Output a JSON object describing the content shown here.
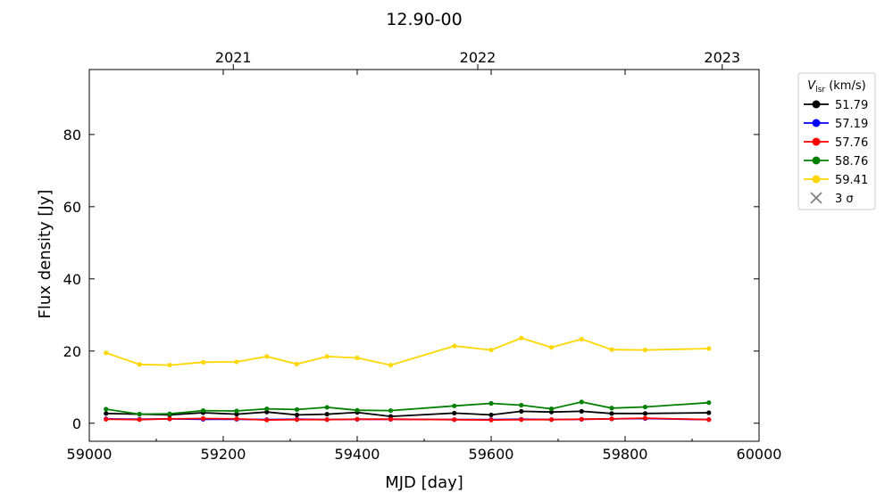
{
  "chart_data": {
    "type": "line",
    "title": "12.90-00",
    "xlabel": "MJD [day]",
    "ylabel": "Flux density [Jy]",
    "xlim": [
      59000,
      60000
    ],
    "ylim": [
      -5,
      98
    ],
    "x_ticks": [
      59000,
      59200,
      59400,
      59600,
      59800,
      60000
    ],
    "y_ticks": [
      0,
      20,
      40,
      60,
      80
    ],
    "x_tick_labels": [
      "59000",
      "59200",
      "59400",
      "59600",
      "59800",
      "60000"
    ],
    "y_tick_labels": [
      "0",
      "20",
      "40",
      "60",
      "80"
    ],
    "top_axis": {
      "ticks": [
        59215,
        59580,
        59945
      ],
      "labels": [
        "2021",
        "2022",
        "2023"
      ]
    },
    "grid": false,
    "legend": {
      "placement": "outside-right",
      "title_main": "V",
      "title_sub": "lsr",
      "title_unit": " (km/s)",
      "sigma_label": "3 σ",
      "sigma_color": "#808080"
    },
    "x": [
      59025,
      59075,
      59120,
      59170,
      59220,
      59265,
      59310,
      59355,
      59400,
      59450,
      59545,
      59600,
      59645,
      59690,
      59735,
      59780,
      59830,
      59925
    ],
    "series": [
      {
        "name": "51.79",
        "color": "#000000",
        "values": [
          2.7,
          2.5,
          2.3,
          2.9,
          2.5,
          3.1,
          2.3,
          2.5,
          3.0,
          1.9,
          2.8,
          2.3,
          3.3,
          3.1,
          3.3,
          2.7,
          2.7,
          2.9
        ]
      },
      {
        "name": "57.19",
        "color": "#0000ff",
        "values": [
          1.2,
          1.1,
          1.2,
          1.1,
          1.1,
          1.0,
          1.1,
          1.0,
          1.1,
          1.1,
          1.0,
          1.0,
          1.1,
          1.0,
          1.1,
          1.2,
          1.3,
          1.0
        ]
      },
      {
        "name": "57.76",
        "color": "#ff0000",
        "values": [
          1.1,
          1.0,
          1.2,
          1.3,
          1.2,
          0.9,
          1.0,
          1.0,
          1.1,
          1.1,
          1.0,
          0.9,
          1.0,
          1.0,
          1.1,
          1.2,
          1.4,
          1.0
        ]
      },
      {
        "name": "58.76",
        "color": "#008000",
        "values": [
          3.9,
          2.5,
          2.6,
          3.5,
          3.4,
          4.0,
          3.8,
          4.4,
          3.6,
          3.5,
          4.8,
          5.5,
          5.0,
          4.0,
          5.9,
          4.2,
          4.5,
          5.7
        ]
      },
      {
        "name": "59.41",
        "color": "#ffd700",
        "values": [
          19.5,
          16.3,
          16.1,
          16.9,
          17.0,
          18.5,
          16.4,
          18.5,
          18.1,
          16.1,
          21.4,
          20.3,
          23.6,
          21.0,
          23.3,
          20.4,
          20.3,
          20.7
        ]
      }
    ]
  }
}
